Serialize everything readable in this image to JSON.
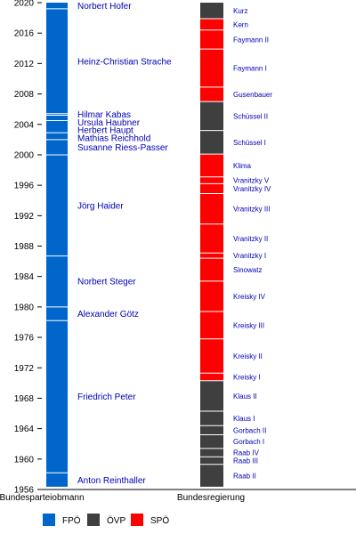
{
  "chart_data": {
    "type": "timeline",
    "ylim": [
      1956,
      2020
    ],
    "y_ticks": [
      1956,
      1960,
      1964,
      1968,
      1972,
      1976,
      1980,
      1984,
      1988,
      1992,
      1996,
      2000,
      2004,
      2008,
      2012,
      2016,
      2020
    ],
    "x_labels": [
      "Bundesparteiobmann",
      "Bundesregierung"
    ],
    "colors": {
      "FPÖ": "#0066cc",
      "ÖVP": "#3f3f3f",
      "SPÖ": "#ff0000"
    },
    "legend": [
      {
        "label": "FPÖ",
        "color": "#0066cc"
      },
      {
        "label": "ÖVP",
        "color": "#3f3f3f"
      },
      {
        "label": "SPÖ",
        "color": "#ff0000"
      }
    ],
    "party_chairs": [
      {
        "name": "Anton Reinthaller",
        "start": 1956.3,
        "end": 1958.2
      },
      {
        "name": "Friedrich Peter",
        "start": 1958.2,
        "end": 1978.2
      },
      {
        "name": "Alexander Götz",
        "start": 1978.2,
        "end": 1980.0
      },
      {
        "name": "Norbert Steger",
        "start": 1980.0,
        "end": 1986.7
      },
      {
        "name": "Jörg Haider",
        "start": 1986.7,
        "end": 2000.0
      },
      {
        "name": "Susanne Riess-Passer",
        "start": 2000.0,
        "end": 2002.0
      },
      {
        "name": "Mathias Reichhold",
        "start": 2002.0,
        "end": 2002.9
      },
      {
        "name": "Herbert Haupt",
        "start": 2002.9,
        "end": 2004.5
      },
      {
        "name": "Ursula Haubner",
        "start": 2004.5,
        "end": 2005.2
      },
      {
        "name": "Hilmar Kabas",
        "start": 2005.2,
        "end": 2005.4
      },
      {
        "name": "Heinz-Christian Strache",
        "start": 2005.4,
        "end": 2019.2
      },
      {
        "name": "Norbert Hofer",
        "start": 2019.2,
        "end": 2020.0
      }
    ],
    "governments": [
      {
        "name": "Raab II",
        "party": "ÖVP",
        "start": 1956.3,
        "end": 1959.3
      },
      {
        "name": "Raab III",
        "party": "ÖVP",
        "start": 1959.3,
        "end": 1960.3
      },
      {
        "name": "Raab IV",
        "party": "ÖVP",
        "start": 1960.3,
        "end": 1961.4
      },
      {
        "name": "Gorbach I",
        "party": "ÖVP",
        "start": 1961.4,
        "end": 1963.2
      },
      {
        "name": "Gorbach II",
        "party": "ÖVP",
        "start": 1963.2,
        "end": 1964.4
      },
      {
        "name": "Klaus I",
        "party": "ÖVP",
        "start": 1964.4,
        "end": 1966.3
      },
      {
        "name": "Klaus II",
        "party": "ÖVP",
        "start": 1966.3,
        "end": 1970.3
      },
      {
        "name": "Kreisky I",
        "party": "SPÖ",
        "start": 1970.3,
        "end": 1971.3
      },
      {
        "name": "Kreisky II",
        "party": "SPÖ",
        "start": 1971.3,
        "end": 1975.8
      },
      {
        "name": "Kreisky III",
        "party": "SPÖ",
        "start": 1975.8,
        "end": 1979.4
      },
      {
        "name": "Kreisky IV",
        "party": "SPÖ",
        "start": 1979.4,
        "end": 1983.4
      },
      {
        "name": "Sinowatz",
        "party": "SPÖ",
        "start": 1983.4,
        "end": 1986.4
      },
      {
        "name": "Vranitzky I",
        "party": "SPÖ",
        "start": 1986.4,
        "end": 1987.1
      },
      {
        "name": "Vranitzky II",
        "party": "SPÖ",
        "start": 1987.1,
        "end": 1990.9
      },
      {
        "name": "Vranitzky III",
        "party": "SPÖ",
        "start": 1990.9,
        "end": 1994.9
      },
      {
        "name": "Vranitzky IV",
        "party": "SPÖ",
        "start": 1994.9,
        "end": 1996.2
      },
      {
        "name": "Vranitzky V",
        "party": "SPÖ",
        "start": 1996.2,
        "end": 1997.1
      },
      {
        "name": "Klima",
        "party": "SPÖ",
        "start": 1997.1,
        "end": 2000.1
      },
      {
        "name": "Schüssel I",
        "party": "ÖVP",
        "start": 2000.1,
        "end": 2003.2
      },
      {
        "name": "Schüssel II",
        "party": "ÖVP",
        "start": 2003.2,
        "end": 2007.0
      },
      {
        "name": "Gusenbauer",
        "party": "SPÖ",
        "start": 2007.0,
        "end": 2008.9
      },
      {
        "name": "Faymann I",
        "party": "SPÖ",
        "start": 2008.9,
        "end": 2013.9
      },
      {
        "name": "Faymann II",
        "party": "SPÖ",
        "start": 2013.9,
        "end": 2016.4
      },
      {
        "name": "Kern",
        "party": "SPÖ",
        "start": 2016.4,
        "end": 2017.9
      },
      {
        "name": "Kurz",
        "party": "ÖVP",
        "start": 2017.9,
        "end": 2020.0
      }
    ]
  }
}
